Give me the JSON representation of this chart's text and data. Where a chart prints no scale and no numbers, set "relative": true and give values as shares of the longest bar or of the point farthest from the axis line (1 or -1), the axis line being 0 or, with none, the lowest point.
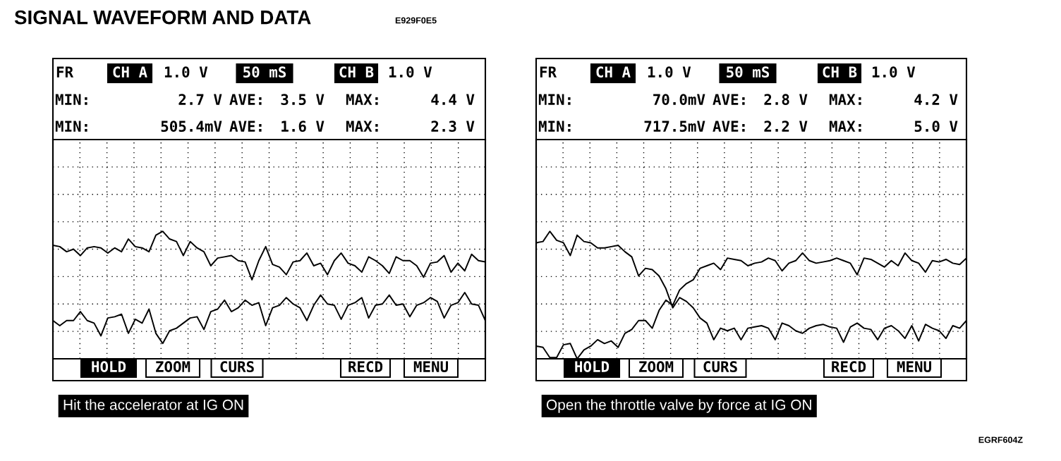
{
  "chart_data": [
    {
      "type": "line",
      "title": "SIGNAL WAVEFORM AND DATA",
      "relative": true,
      "grid": true,
      "categories": [
        null,
        null,
        null,
        null,
        null,
        null,
        null,
        null,
        null,
        null,
        null,
        null,
        null,
        null,
        null,
        null,
        null,
        null,
        null,
        null,
        null,
        null,
        null,
        null,
        null,
        null,
        null,
        null,
        null,
        null,
        null,
        null,
        null,
        null,
        null,
        null,
        null,
        null,
        null,
        null,
        null,
        null,
        null,
        null,
        null,
        null,
        null,
        null,
        null,
        null,
        null,
        null,
        null,
        null,
        null,
        null,
        null,
        null,
        null,
        null,
        null,
        null,
        null,
        null
      ],
      "series": [
        {
          "color": "#000000",
          "values": [
            0.89,
            0.88,
            0.84,
            0.86,
            0.81,
            0.87,
            0.88,
            0.87,
            0.83,
            0.87,
            0.84,
            0.94,
            0.88,
            0.87,
            0.84,
            0.97,
            1.0,
            0.94,
            0.92,
            0.81,
            0.92,
            0.87,
            0.84,
            0.73,
            0.79,
            0.8,
            0.81,
            0.77,
            0.76,
            0.62,
            0.77,
            0.88,
            0.74,
            0.72,
            0.66,
            0.76,
            0.77,
            0.83,
            0.73,
            0.75,
            0.66,
            0.77,
            0.83,
            0.75,
            0.73,
            0.68,
            0.8,
            0.77,
            0.73,
            0.67,
            0.8,
            0.77,
            0.77,
            0.73,
            0.64,
            0.75,
            0.76,
            0.81,
            0.68,
            0.75,
            0.69,
            0.82,
            0.77,
            0.76
          ]
        },
        {
          "color": "#000000",
          "values": [
            0.3,
            0.26,
            0.3,
            0.3,
            0.37,
            0.3,
            0.28,
            0.18,
            0.32,
            0.33,
            0.35,
            0.2,
            0.31,
            0.28,
            0.39,
            0.2,
            0.12,
            0.22,
            0.24,
            0.28,
            0.32,
            0.33,
            0.23,
            0.37,
            0.39,
            0.46,
            0.37,
            0.4,
            0.46,
            0.42,
            0.44,
            0.26,
            0.4,
            0.42,
            0.48,
            0.43,
            0.4,
            0.3,
            0.42,
            0.5,
            0.43,
            0.42,
            0.31,
            0.42,
            0.44,
            0.48,
            0.32,
            0.42,
            0.43,
            0.5,
            0.42,
            0.43,
            0.33,
            0.42,
            0.44,
            0.48,
            0.45,
            0.32,
            0.42,
            0.44,
            0.52,
            0.43,
            0.42,
            0.3
          ]
        }
      ],
      "annotations": [
        "FR",
        "CH A",
        "1.0 V",
        "50 mS",
        "CH B",
        "1.0 V",
        "MIN:",
        "2.7 V",
        "AVE:",
        "3.5 V",
        "MAX:",
        "4.4 V",
        "MIN:",
        "505.4mV",
        "AVE:",
        "1.6 V",
        "MAX:",
        "2.3 V",
        "HOLD",
        "ZOOM",
        "CURS",
        "RECD",
        "MENU",
        "Hit the accelerator at IG ON",
        "E929F0E5"
      ]
    },
    {
      "type": "line",
      "relative": true,
      "grid": true,
      "categories": [
        null,
        null,
        null,
        null,
        null,
        null,
        null,
        null,
        null,
        null,
        null,
        null,
        null,
        null,
        null,
        null,
        null,
        null,
        null,
        null,
        null,
        null,
        null,
        null,
        null,
        null,
        null,
        null,
        null,
        null,
        null,
        null,
        null,
        null,
        null,
        null,
        null,
        null,
        null,
        null,
        null,
        null,
        null,
        null,
        null,
        null,
        null,
        null,
        null,
        null,
        null,
        null,
        null,
        null,
        null,
        null,
        null,
        null,
        null,
        null,
        null,
        null,
        null,
        null
      ],
      "series": [
        {
          "color": "#000000",
          "values": [
            0.91,
            0.92,
            1.0,
            0.93,
            0.91,
            0.81,
            0.97,
            0.92,
            0.91,
            0.87,
            0.87,
            0.88,
            0.89,
            0.84,
            0.8,
            0.65,
            0.71,
            0.7,
            0.65,
            0.55,
            0.4,
            0.48,
            0.45,
            0.4,
            0.32,
            0.28,
            0.15,
            0.24,
            0.22,
            0.24,
            0.15,
            0.24,
            0.25,
            0.26,
            0.24,
            0.15,
            0.28,
            0.26,
            0.22,
            0.2,
            0.24,
            0.26,
            0.27,
            0.25,
            0.24,
            0.13,
            0.25,
            0.28,
            0.24,
            0.23,
            0.15,
            0.24,
            0.26,
            0.22,
            0.16,
            0.26,
            0.14,
            0.27,
            0.24,
            0.22,
            0.16,
            0.26,
            0.24,
            0.3
          ]
        },
        {
          "color": "#000000",
          "values": [
            0.1,
            0.09,
            0.01,
            0.01,
            0.11,
            0.12,
            0.0,
            0.07,
            0.1,
            0.15,
            0.12,
            0.14,
            0.09,
            0.2,
            0.23,
            0.3,
            0.3,
            0.24,
            0.38,
            0.46,
            0.42,
            0.54,
            0.59,
            0.62,
            0.71,
            0.73,
            0.75,
            0.7,
            0.79,
            0.78,
            0.77,
            0.73,
            0.75,
            0.76,
            0.79,
            0.77,
            0.69,
            0.75,
            0.77,
            0.83,
            0.77,
            0.75,
            0.76,
            0.77,
            0.79,
            0.77,
            0.75,
            0.66,
            0.79,
            0.78,
            0.75,
            0.72,
            0.77,
            0.73,
            0.83,
            0.77,
            0.75,
            0.68,
            0.77,
            0.76,
            0.78,
            0.75,
            0.74,
            0.79
          ]
        }
      ],
      "annotations": [
        "FR",
        "CH A",
        "1.0 V",
        "50 mS",
        "CH B",
        "1.0 V",
        "MIN:",
        "70.0mV",
        "AVE:",
        "2.8 V",
        "MAX:",
        "4.2 V",
        "MIN:",
        "717.5mV",
        "AVE:",
        "2.2 V",
        "MAX:",
        "5.0 V",
        "HOLD",
        "ZOOM",
        "CURS",
        "RECD",
        "MENU",
        "Open the throttle valve by force at IG ON",
        "EGRF604Z"
      ]
    }
  ]
}
